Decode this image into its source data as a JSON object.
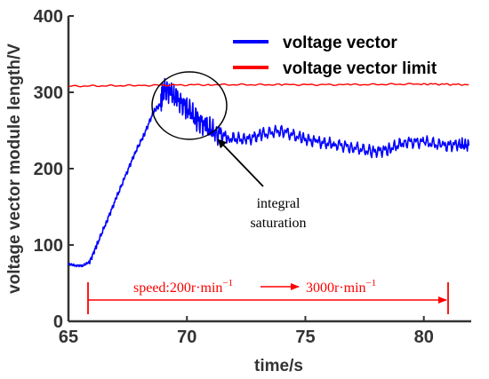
{
  "chart_data": {
    "type": "line",
    "xlabel": "time/s",
    "ylabel": "voltage vector module length/V",
    "xlim": [
      65,
      82
    ],
    "ylim": [
      0,
      400
    ],
    "x_ticks": [
      "65",
      "70",
      "75",
      "80"
    ],
    "y_ticks": [
      "0",
      "100",
      "200",
      "300",
      "400"
    ],
    "grid": false,
    "legend_position": "top-right",
    "series": [
      {
        "name": "voltage vector",
        "color": "#0000ff",
        "x": [
          65.0,
          65.3,
          65.6,
          65.9,
          66.2,
          66.6,
          67.0,
          67.4,
          67.8,
          68.2,
          68.6,
          68.9,
          69.0,
          69.3,
          69.6,
          70.0,
          70.4,
          70.8,
          71.2,
          71.8,
          72.5,
          73.2,
          74.0,
          74.8,
          75.5,
          76.2,
          77.0,
          77.8,
          78.5,
          79.2,
          80.0,
          80.8,
          81.5,
          81.9
        ],
        "y": [
          75,
          73,
          73,
          78,
          100,
          130,
          160,
          190,
          220,
          245,
          275,
          285,
          305,
          300,
          290,
          280,
          265,
          255,
          248,
          240,
          238,
          245,
          250,
          240,
          235,
          232,
          228,
          222,
          225,
          235,
          235,
          230,
          232,
          230
        ]
      },
      {
        "name": "voltage vector limit",
        "color": "#ff0000",
        "x": [
          65.0,
          68.0,
          71.0,
          74.0,
          77.0,
          80.0,
          81.9
        ],
        "y": [
          308,
          309,
          310,
          310,
          310,
          311,
          310
        ]
      }
    ],
    "annotations": {
      "integral_saturation": [
        "integral",
        "saturation"
      ],
      "speed_range": {
        "start_x": 65.6,
        "end_x": 81.0,
        "y": 55,
        "label_from": "speed:200r·min",
        "label_to": "3000r·min",
        "exponent": "−1"
      }
    }
  }
}
